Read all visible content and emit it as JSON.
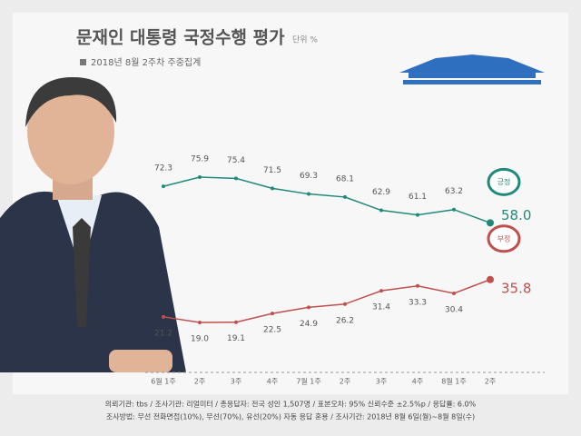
{
  "chart_data": {
    "type": "line",
    "title": "문재인 대통령 국정수행 평가",
    "unit": "단위 %",
    "subtitle": "2018년 8월 2주차 주중집계",
    "categories": [
      "6월 1주",
      "2주",
      "3주",
      "4주",
      "7월 1주",
      "2주",
      "3주",
      "4주",
      "8월 1주",
      "2주"
    ],
    "series": [
      {
        "name": "긍정",
        "color": "#1f8a7a",
        "values": [
          72.3,
          75.9,
          75.4,
          71.5,
          69.3,
          68.1,
          62.9,
          61.1,
          63.2,
          58.0
        ],
        "value_labels": [
          "72.3",
          "75.9",
          "75.4",
          "71.5",
          "69.3",
          "68.1",
          "62.9",
          "61.1",
          "63.2",
          "58.0"
        ]
      },
      {
        "name": "부정",
        "color": "#c0504d",
        "values": [
          21.2,
          19.0,
          19.1,
          22.5,
          24.9,
          26.2,
          31.4,
          33.3,
          30.4,
          35.8
        ],
        "value_labels": [
          "21.2",
          "19.0",
          "19.1",
          "22.5",
          "24.9",
          "26.2",
          "31.4",
          "33.3",
          "30.4",
          "35.8"
        ]
      }
    ],
    "notes": [
      "의뢰기관: tbs / 조사기관: 리얼미터 / 총응답자: 전국 성인 1,507명 / 표본오차: 95% 신뢰수준 ±2.5%p / 응답률: 6.0%",
      "조사방법: 무선 전화면접(10%), 무선(70%), 유선(20%) 자동 응답 혼용 / 조사기간: 2018년 8월 6일(월)~8월 8일(수)"
    ]
  }
}
